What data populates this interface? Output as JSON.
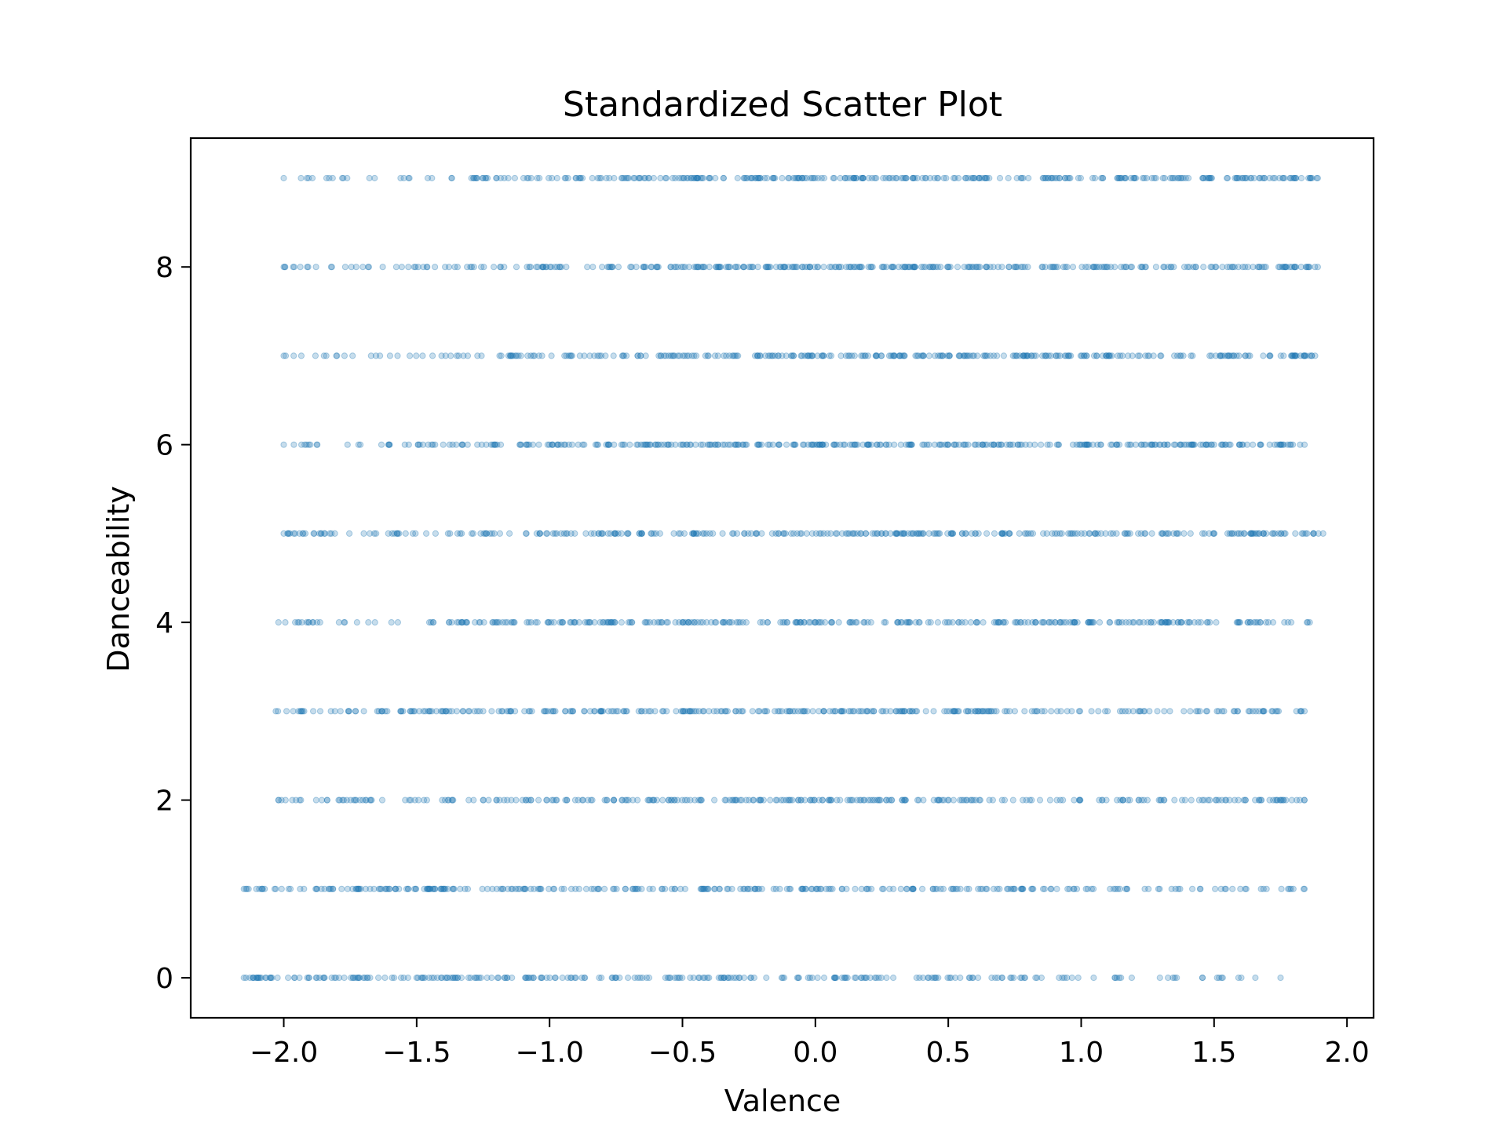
{
  "chart_data": {
    "type": "scatter",
    "title": "Standardized Scatter Plot",
    "xlabel": "Valence",
    "ylabel": "Danceability",
    "xlim": [
      -2.35,
      2.1
    ],
    "ylim": [
      -0.45,
      9.45
    ],
    "xticks": [
      -2.0,
      -1.5,
      -1.0,
      -0.5,
      0.0,
      0.5,
      1.0,
      1.5,
      2.0
    ],
    "xtick_labels": [
      "−2.0",
      "−1.5",
      "−1.0",
      "−0.5",
      "0.0",
      "0.5",
      "1.0",
      "1.5",
      "2.0"
    ],
    "yticks": [
      0,
      2,
      4,
      6,
      8
    ],
    "ytick_labels": [
      "0",
      "2",
      "4",
      "6",
      "8"
    ],
    "grid": false,
    "marker_color": "#1f77b4",
    "marker_alpha": 0.25,
    "series": [
      {
        "y": 0,
        "x_min": -2.15,
        "x_max": 1.75,
        "density": [
          0.6,
          0.55,
          0.5,
          0.45,
          0.35,
          0.25,
          0.15,
          0.08
        ]
      },
      {
        "y": 1,
        "x_min": -2.15,
        "x_max": 1.84,
        "density": [
          0.45,
          0.55,
          0.55,
          0.5,
          0.45,
          0.35,
          0.25,
          0.18
        ]
      },
      {
        "y": 2,
        "x_min": -2.02,
        "x_max": 1.84,
        "density": [
          0.35,
          0.5,
          0.6,
          0.6,
          0.55,
          0.45,
          0.35,
          0.28
        ]
      },
      {
        "y": 3,
        "x_min": -2.03,
        "x_max": 1.84,
        "density": [
          0.25,
          0.45,
          0.55,
          0.6,
          0.6,
          0.55,
          0.45,
          0.35
        ]
      },
      {
        "y": 4,
        "x_min": -2.02,
        "x_max": 1.86,
        "density": [
          0.22,
          0.4,
          0.5,
          0.6,
          0.6,
          0.6,
          0.5,
          0.4
        ]
      },
      {
        "y": 5,
        "x_min": -2.0,
        "x_max": 1.91,
        "density": [
          0.2,
          0.35,
          0.5,
          0.6,
          0.65,
          0.6,
          0.55,
          0.45
        ]
      },
      {
        "y": 6,
        "x_min": -2.0,
        "x_max": 1.84,
        "density": [
          0.15,
          0.3,
          0.45,
          0.6,
          0.65,
          0.65,
          0.6,
          0.5
        ]
      },
      {
        "y": 7,
        "x_min": -2.0,
        "x_max": 1.88,
        "density": [
          0.15,
          0.3,
          0.45,
          0.6,
          0.65,
          0.7,
          0.65,
          0.55
        ]
      },
      {
        "y": 8,
        "x_min": -2.0,
        "x_max": 1.89,
        "density": [
          0.12,
          0.25,
          0.45,
          0.6,
          0.7,
          0.7,
          0.65,
          0.6
        ]
      },
      {
        "y": 9,
        "x_min": -2.0,
        "x_max": 1.89,
        "density": [
          0.1,
          0.2,
          0.4,
          0.55,
          0.7,
          0.7,
          0.65,
          0.6
        ]
      }
    ]
  }
}
